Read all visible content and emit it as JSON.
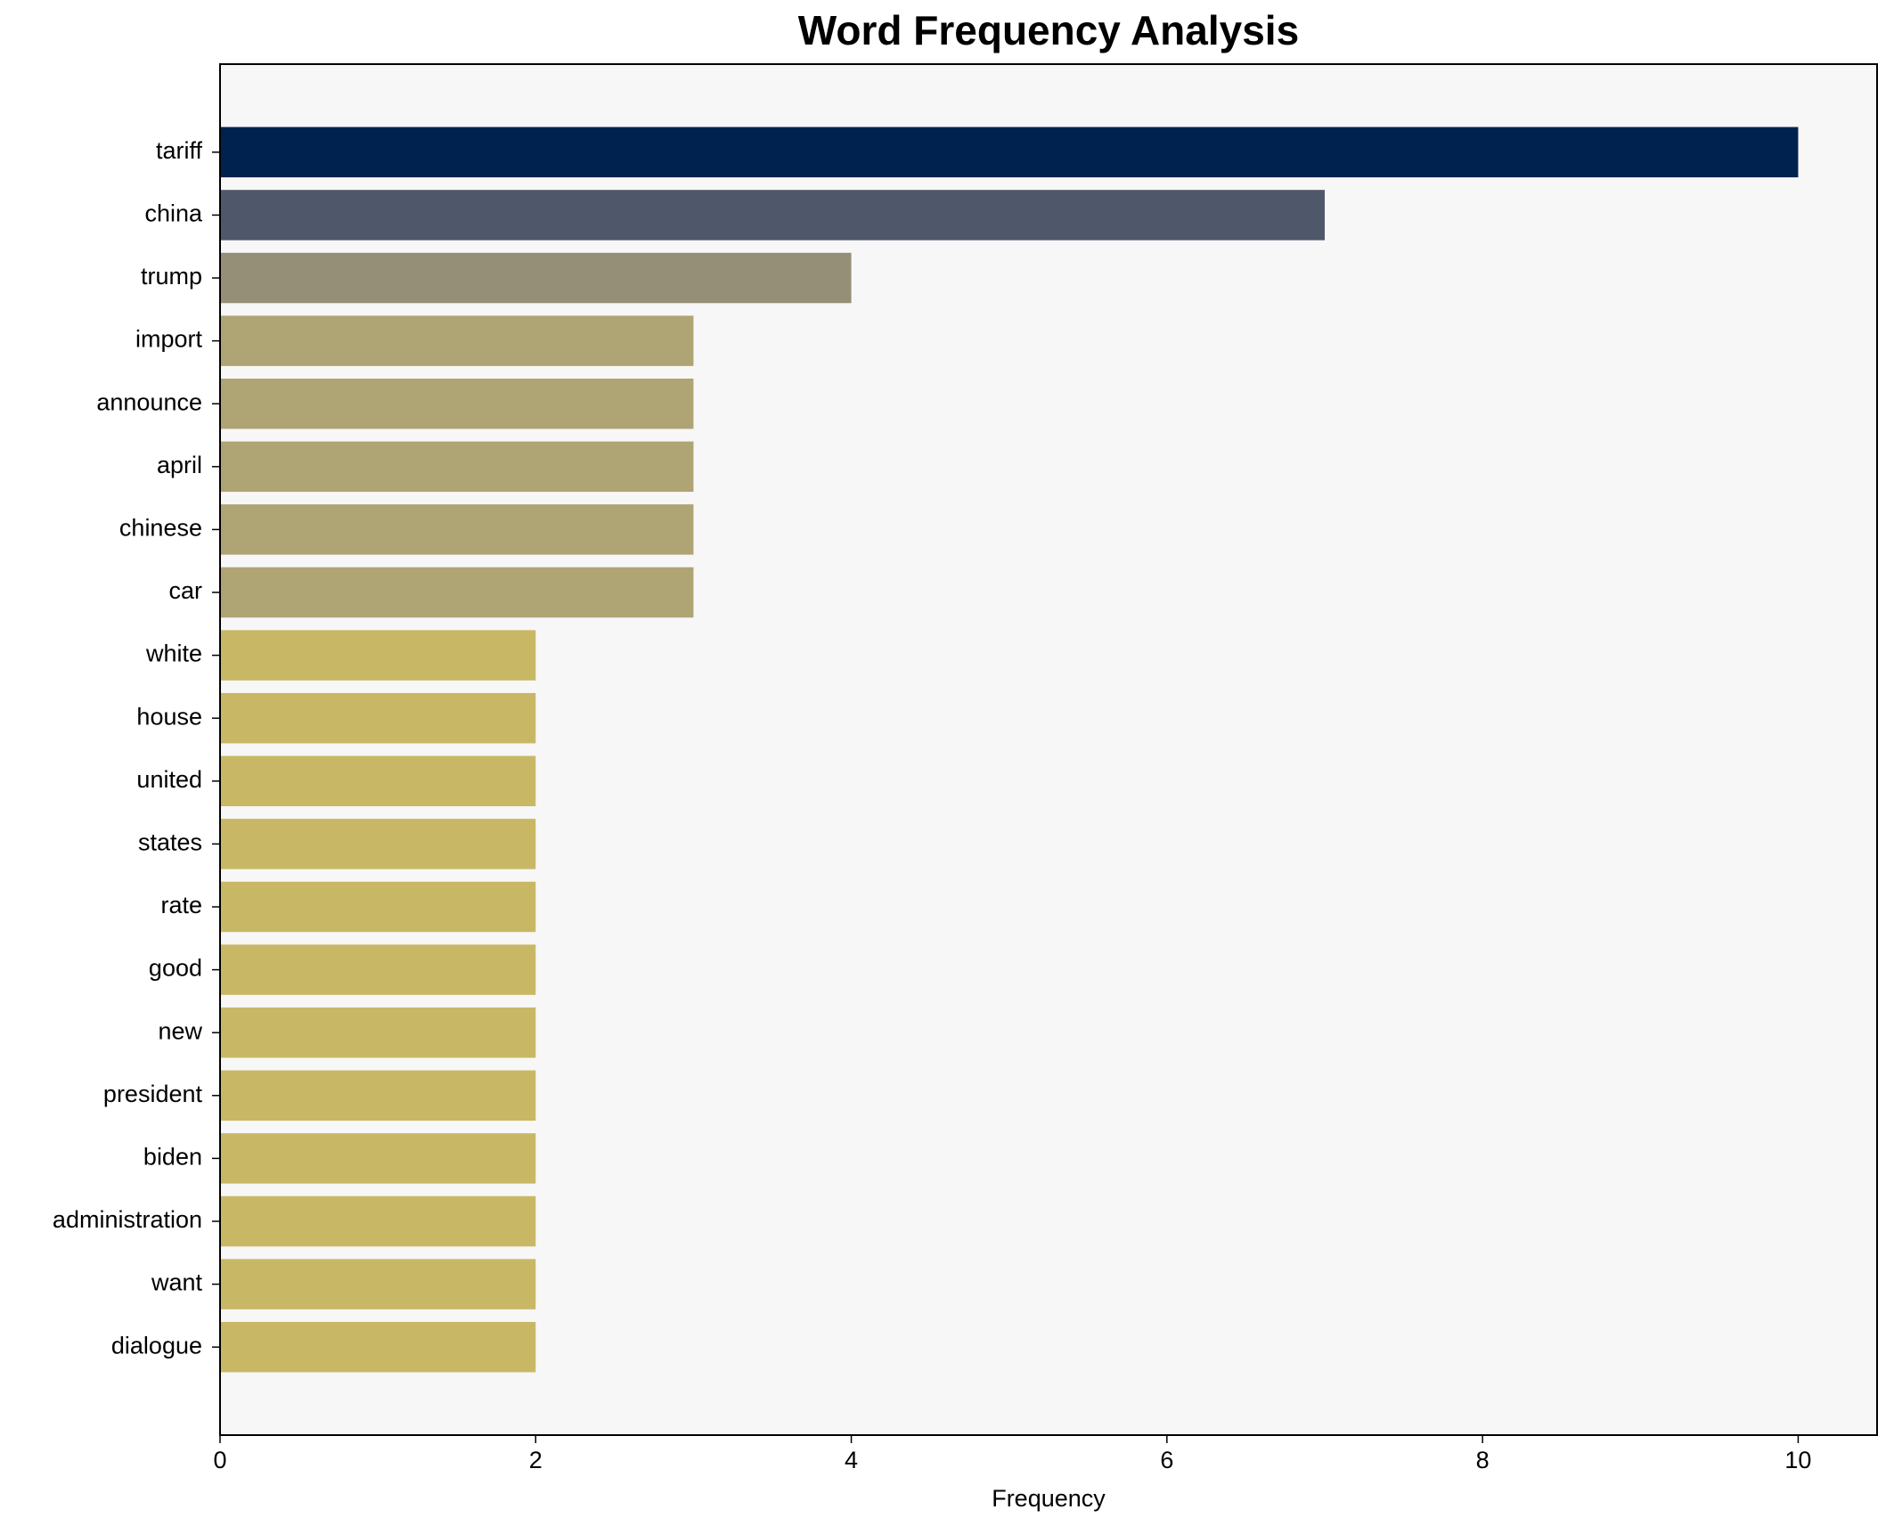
{
  "chart_data": {
    "type": "barh",
    "title": "Word Frequency Analysis",
    "x_label": "Frequency",
    "categories": [
      "tariff",
      "china",
      "trump",
      "import",
      "announce",
      "april",
      "chinese",
      "car",
      "white",
      "house",
      "united",
      "states",
      "rate",
      "good",
      "new",
      "president",
      "biden",
      "administration",
      "want",
      "dialogue"
    ],
    "values": [
      10,
      7,
      4,
      3,
      3,
      3,
      3,
      3,
      2,
      2,
      2,
      2,
      2,
      2,
      2,
      2,
      2,
      2,
      2,
      2
    ],
    "colors": [
      "#00224e",
      "#4f586b",
      "#958f78",
      "#afa473",
      "#afa473",
      "#afa473",
      "#afa473",
      "#afa473",
      "#c8b866",
      "#c8b866",
      "#c8b866",
      "#c8b866",
      "#c8b866",
      "#c8b866",
      "#c8b866",
      "#c8b866",
      "#c8b866",
      "#c8b866",
      "#c8b866",
      "#c8b866"
    ],
    "xlim": [
      0,
      10.5
    ],
    "xticks": [
      0,
      2,
      4,
      6,
      8,
      10
    ],
    "grid": false
  }
}
